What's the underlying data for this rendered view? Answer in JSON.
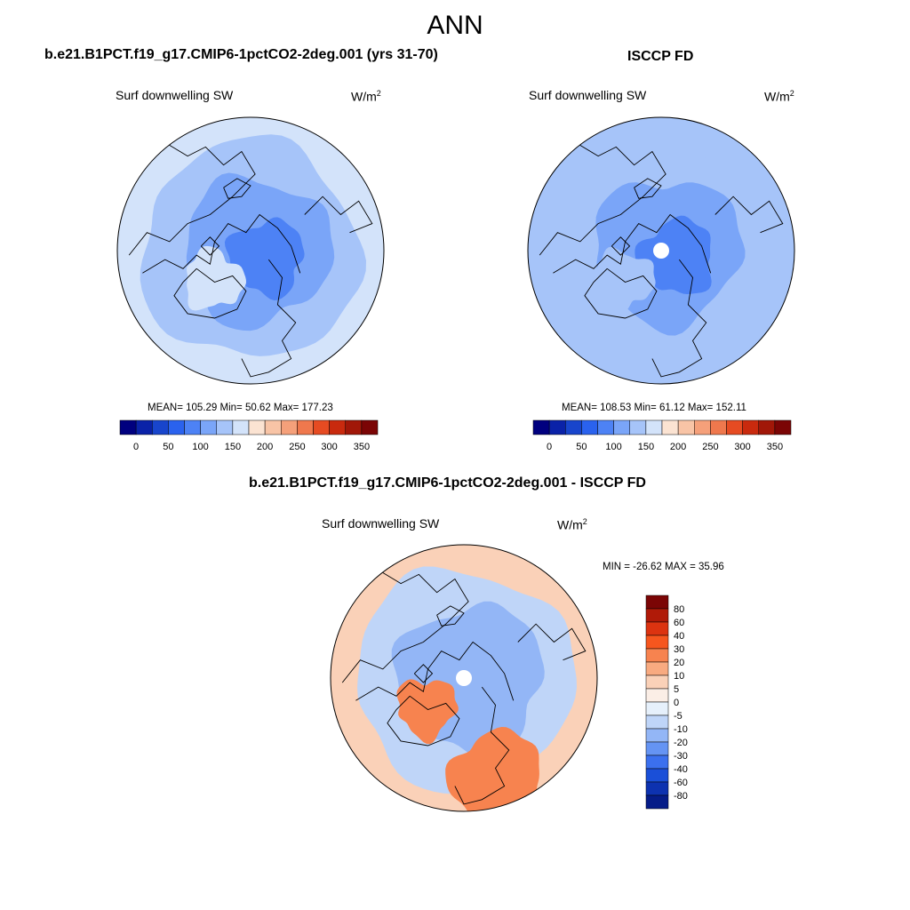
{
  "figure": {
    "season": "ANN",
    "diff_title": "b.e21.B1PCT.f19_g17.CMIP6-1pctCO2-2deg.001 - ISCCP FD"
  },
  "panels": [
    {
      "title": "b.e21.B1PCT.f19_g17.CMIP6-1pctCO2-2deg.001 (yrs 31-70)",
      "variable": "Surf downwelling SW",
      "units": "W/m",
      "units_exp": "2",
      "stats": "MEAN= 105.29  Min=  50.62  Max= 177.23"
    },
    {
      "title": "ISCCP FD",
      "variable": "Surf downwelling SW",
      "units": "W/m",
      "units_exp": "2",
      "stats": "MEAN= 108.53  Min=  61.12  Max= 152.11"
    },
    {
      "title": "",
      "variable": "Surf downwelling SW",
      "units": "W/m",
      "units_exp": "2",
      "stats": "MIN = -26.62 MAX =  35.96"
    }
  ],
  "chart_data": [
    {
      "type": "heatmap",
      "projection": "north-polar-stereographic",
      "title": "b.e21.B1PCT.f19_g17.CMIP6-1pctCO2-2deg.001 (yrs 31-70)",
      "variable": "Surf downwelling SW",
      "units": "W/m2",
      "mean": 105.29,
      "min": 50.62,
      "max": 177.23,
      "colorbar_ticks": [
        "0",
        "50",
        "100",
        "150",
        "200",
        "250",
        "300",
        "350"
      ],
      "colorbar_colors": [
        "#00007f",
        "#0a22a8",
        "#1845cc",
        "#2a62ee",
        "#4d82f5",
        "#7aa5f8",
        "#a6c4f9",
        "#d3e3fa",
        "#fbe3d2",
        "#f8c4a6",
        "#f5a07a",
        "#ef784d",
        "#e64b22",
        "#c92a0e",
        "#a11708",
        "#7b0505"
      ],
      "regions": [
        {
          "zone": "outer",
          "level": 150
        },
        {
          "zone": "mid",
          "level": 125
        },
        {
          "zone": "inner",
          "level": 100
        },
        {
          "zone": "core",
          "level": 80
        },
        {
          "zone": "greenland",
          "level": 165
        }
      ]
    },
    {
      "type": "heatmap",
      "projection": "north-polar-stereographic",
      "title": "ISCCP FD",
      "variable": "Surf downwelling SW",
      "units": "W/m2",
      "mean": 108.53,
      "min": 61.12,
      "max": 152.11,
      "colorbar_ticks": [
        "0",
        "50",
        "100",
        "150",
        "200",
        "250",
        "300",
        "350"
      ],
      "colorbar_colors": [
        "#00007f",
        "#0a22a8",
        "#1845cc",
        "#2a62ee",
        "#4d82f5",
        "#7aa5f8",
        "#a6c4f9",
        "#d3e3fa",
        "#fbe3d2",
        "#f8c4a6",
        "#f5a07a",
        "#ef784d",
        "#e64b22",
        "#c92a0e",
        "#a11708",
        "#7b0505"
      ],
      "regions": [
        {
          "zone": "outer",
          "level": 145
        },
        {
          "zone": "mid",
          "level": 125
        },
        {
          "zone": "inner",
          "level": 100
        },
        {
          "zone": "core",
          "level": 85
        },
        {
          "zone": "greenland",
          "level": 140
        },
        {
          "zone": "pole",
          "level": null
        }
      ]
    },
    {
      "type": "heatmap",
      "projection": "north-polar-stereographic",
      "title": "b.e21.B1PCT.f19_g17.CMIP6-1pctCO2-2deg.001 - ISCCP FD",
      "variable": "Surf downwelling SW",
      "units": "W/m2",
      "min": -26.62,
      "max": 35.96,
      "colorbar_ticks": [
        "80",
        "60",
        "40",
        "30",
        "20",
        "10",
        "5",
        "0",
        "-5",
        "-10",
        "-20",
        "-30",
        "-40",
        "-60",
        "-80"
      ],
      "colorbar_colors": [
        "#7b0505",
        "#b01a08",
        "#dc3310",
        "#f6561e",
        "#f7834f",
        "#f8aa80",
        "#fad1b8",
        "#fbeee6",
        "#e6f0fb",
        "#bfd5f8",
        "#93b6f6",
        "#6594f3",
        "#3b70ee",
        "#1a4fd8",
        "#0d32b0",
        "#051c88"
      ],
      "regions": [
        {
          "zone": "outer",
          "level": 7
        },
        {
          "zone": "mid",
          "level": -7
        },
        {
          "zone": "inner",
          "level": -15
        },
        {
          "zone": "greenland",
          "level": 25
        },
        {
          "zone": "europe",
          "level": 25
        },
        {
          "zone": "pole",
          "level": null
        }
      ]
    }
  ]
}
